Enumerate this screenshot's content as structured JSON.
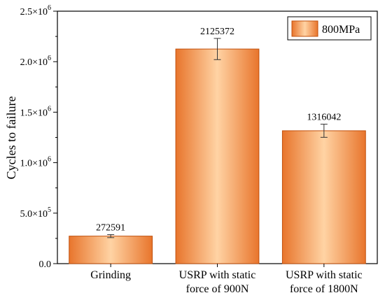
{
  "chart_data": {
    "type": "bar",
    "ylabel": "Cycles to failure",
    "ylim": [
      0,
      2500000
    ],
    "y_ticks": [
      {
        "value": 0,
        "mantissa": "0.0",
        "exponent": ""
      },
      {
        "value": 500000,
        "mantissa": "5.0×10",
        "exponent": "5"
      },
      {
        "value": 1000000,
        "mantissa": "1.0×10",
        "exponent": "6"
      },
      {
        "value": 1500000,
        "mantissa": "1.5×10",
        "exponent": "6"
      },
      {
        "value": 2000000,
        "mantissa": "2.0×10",
        "exponent": "6"
      },
      {
        "value": 2500000,
        "mantissa": "2.5×10",
        "exponent": "6"
      }
    ],
    "categories": [
      [
        "Grinding"
      ],
      [
        "USRP with static",
        "force of 900N"
      ],
      [
        "USRP with static",
        "force of 1800N"
      ]
    ],
    "series": [
      {
        "name": "800MPa",
        "values": [
          272591,
          2125372,
          1316042
        ],
        "error": [
          15000,
          105000,
          65000
        ],
        "data_labels": [
          "272591",
          "2125372",
          "1316042"
        ]
      }
    ],
    "legend_position": "top-right",
    "grid": false,
    "colors": {
      "bar_edge": "#c0500d",
      "bar_light": "#ffd09e",
      "bar_dark": "#e8752c"
    }
  }
}
